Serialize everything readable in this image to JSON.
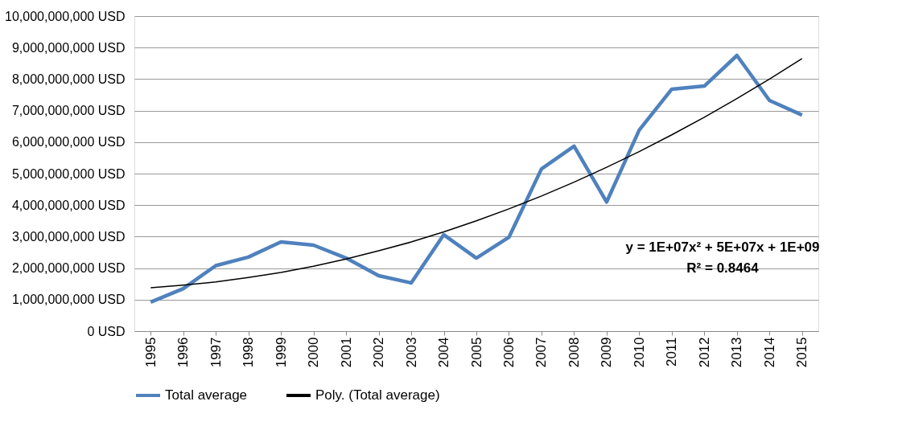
{
  "chart_data": {
    "type": "line",
    "categories": [
      "1995",
      "1996",
      "1997",
      "1998",
      "1999",
      "2000",
      "2001",
      "2002",
      "2003",
      "2004",
      "2005",
      "2006",
      "2007",
      "2008",
      "2009",
      "2010",
      "2011",
      "2012",
      "2013",
      "2014",
      "2015"
    ],
    "series": [
      {
        "name": "Total average",
        "color": "#4f81bd",
        "values": [
          920000000,
          1350000000,
          2080000000,
          2350000000,
          2830000000,
          2730000000,
          2320000000,
          1760000000,
          1530000000,
          3060000000,
          2320000000,
          2980000000,
          5150000000,
          5870000000,
          4100000000,
          6380000000,
          7680000000,
          7780000000,
          8750000000,
          7320000000,
          6860000000
        ]
      },
      {
        "name": "Poly. (Total average)",
        "color": "#000000",
        "values": [
          1380000000,
          1460000000,
          1560000000,
          1700000000,
          1860000000,
          2060000000,
          2290000000,
          2550000000,
          2830000000,
          3150000000,
          3500000000,
          3880000000,
          4290000000,
          4730000000,
          5200000000,
          5700000000,
          6230000000,
          6790000000,
          7380000000,
          8000000000,
          8650000000
        ]
      }
    ],
    "ylim": [
      0,
      10000000000
    ],
    "yticks": [
      {
        "value": 0,
        "label": "0 USD"
      },
      {
        "value": 1000000000,
        "label": "1,000,000,000 USD"
      },
      {
        "value": 2000000000,
        "label": "2,000,000,000 USD"
      },
      {
        "value": 3000000000,
        "label": "3,000,000,000 USD"
      },
      {
        "value": 4000000000,
        "label": "4,000,000,000 USD"
      },
      {
        "value": 5000000000,
        "label": "5,000,000,000 USD"
      },
      {
        "value": 6000000000,
        "label": "6,000,000,000 USD"
      },
      {
        "value": 7000000000,
        "label": "7,000,000,000 USD"
      },
      {
        "value": 8000000000,
        "label": "8,000,000,000 USD"
      },
      {
        "value": 9000000000,
        "label": "9,000,000,000 USD"
      },
      {
        "value": 10000000000,
        "label": "10,000,000,000 USD"
      }
    ],
    "annotations": [
      "y = 1E+07x² + 5E+07x + 1E+09",
      "R² = 0.8464"
    ],
    "grid": "y",
    "legend": "bottom",
    "marker": "none",
    "line_style": "solid"
  }
}
